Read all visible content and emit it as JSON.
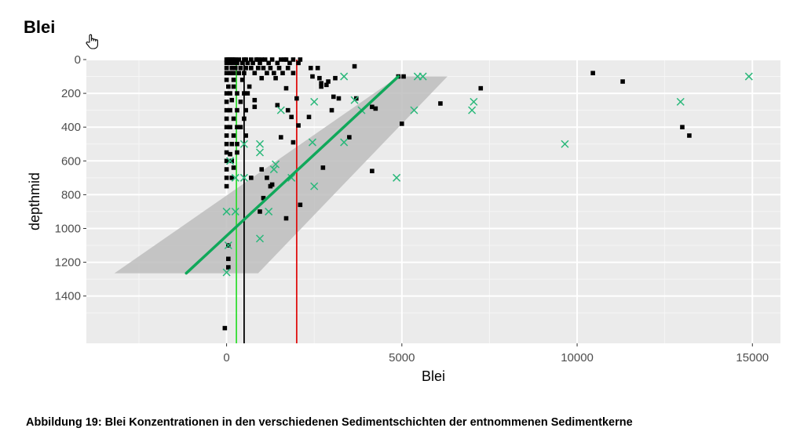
{
  "heading": "Blei",
  "caption": "Abbildung 19: Blei Konzentrationen in den verschiedenen Sedimentschichten der entnommenen Sedimentkerne",
  "cursor_icon": "hand-cursor-icon",
  "chart_data": {
    "type": "scatter",
    "title": "",
    "xlabel": "Blei",
    "ylabel": "depthmid",
    "xlim": [
      -4000,
      15800
    ],
    "ylim": [
      0,
      1680
    ],
    "y_reversed": true,
    "x_ticks": [
      0,
      5000,
      10000,
      15000
    ],
    "x_tick_labels": [
      "0",
      "5000",
      "10000",
      "15000"
    ],
    "y_ticks": [
      0,
      200,
      400,
      600,
      800,
      1000,
      1200,
      1400
    ],
    "y_tick_labels": [
      "0",
      "200",
      "400",
      "600",
      "800",
      "1000",
      "1200",
      "1400"
    ],
    "grid": true,
    "background": "#ebebeb",
    "series": [
      {
        "marker": "square",
        "color": "#000000",
        "points": [
          [
            0,
            0
          ],
          [
            50,
            0
          ],
          [
            100,
            0
          ],
          [
            150,
            0
          ],
          [
            200,
            0
          ],
          [
            250,
            0
          ],
          [
            350,
            0
          ],
          [
            500,
            0
          ],
          [
            550,
            0
          ],
          [
            700,
            0
          ],
          [
            850,
            0
          ],
          [
            900,
            0
          ],
          [
            1000,
            0
          ],
          [
            1100,
            0
          ],
          [
            1300,
            0
          ],
          [
            1550,
            0
          ],
          [
            1650,
            0
          ],
          [
            1700,
            0
          ],
          [
            1900,
            0
          ],
          [
            2100,
            0
          ],
          [
            0,
            20
          ],
          [
            100,
            20
          ],
          [
            200,
            20
          ],
          [
            300,
            20
          ],
          [
            450,
            20
          ],
          [
            600,
            20
          ],
          [
            750,
            20
          ],
          [
            950,
            20
          ],
          [
            1200,
            20
          ],
          [
            1450,
            20
          ],
          [
            1800,
            20
          ],
          [
            2050,
            20
          ],
          [
            0,
            50
          ],
          [
            150,
            50
          ],
          [
            250,
            50
          ],
          [
            400,
            50
          ],
          [
            550,
            50
          ],
          [
            700,
            50
          ],
          [
            900,
            50
          ],
          [
            1050,
            50
          ],
          [
            1250,
            50
          ],
          [
            1500,
            50
          ],
          [
            1750,
            50
          ],
          [
            2400,
            50
          ],
          [
            2600,
            50
          ],
          [
            3650,
            40
          ],
          [
            0,
            80
          ],
          [
            100,
            80
          ],
          [
            200,
            80
          ],
          [
            350,
            80
          ],
          [
            500,
            80
          ],
          [
            800,
            80
          ],
          [
            1150,
            80
          ],
          [
            1350,
            80
          ],
          [
            1600,
            80
          ],
          [
            1900,
            80
          ],
          [
            0,
            120
          ],
          [
            200,
            120
          ],
          [
            450,
            120
          ],
          [
            1000,
            110
          ],
          [
            1400,
            110
          ],
          [
            2450,
            100
          ],
          [
            2650,
            110
          ],
          [
            2700,
            140
          ],
          [
            2900,
            130
          ],
          [
            3100,
            110
          ],
          [
            4900,
            100
          ],
          [
            5050,
            100
          ],
          [
            7250,
            170
          ],
          [
            50,
            160
          ],
          [
            200,
            160
          ],
          [
            650,
            160
          ],
          [
            1700,
            170
          ],
          [
            2700,
            160
          ],
          [
            2850,
            150
          ],
          [
            0,
            200
          ],
          [
            100,
            200
          ],
          [
            300,
            200
          ],
          [
            500,
            200
          ],
          [
            600,
            200
          ],
          [
            3050,
            220
          ],
          [
            3200,
            230
          ],
          [
            3700,
            230
          ],
          [
            4150,
            280
          ],
          [
            4250,
            290
          ],
          [
            6100,
            260
          ],
          [
            0,
            250
          ],
          [
            150,
            240
          ],
          [
            400,
            250
          ],
          [
            800,
            240
          ],
          [
            2000,
            230
          ],
          [
            0,
            300
          ],
          [
            100,
            300
          ],
          [
            300,
            300
          ],
          [
            550,
            300
          ],
          [
            800,
            280
          ],
          [
            1450,
            270
          ],
          [
            1750,
            300
          ],
          [
            3000,
            300
          ],
          [
            0,
            350
          ],
          [
            200,
            350
          ],
          [
            500,
            350
          ],
          [
            1850,
            340
          ],
          [
            2350,
            340
          ],
          [
            5000,
            380
          ],
          [
            0,
            400
          ],
          [
            100,
            400
          ],
          [
            300,
            400
          ],
          [
            400,
            400
          ],
          [
            2050,
            390
          ],
          [
            0,
            450
          ],
          [
            200,
            450
          ],
          [
            550,
            450
          ],
          [
            1550,
            460
          ],
          [
            3500,
            460
          ],
          [
            0,
            500
          ],
          [
            150,
            500
          ],
          [
            300,
            500
          ],
          [
            1900,
            490
          ],
          [
            0,
            550
          ],
          [
            100,
            560
          ],
          [
            300,
            550
          ],
          [
            0,
            600
          ],
          [
            150,
            600
          ],
          [
            0,
            650
          ],
          [
            200,
            640
          ],
          [
            1000,
            650
          ],
          [
            2750,
            640
          ],
          [
            4150,
            660
          ],
          [
            0,
            700
          ],
          [
            150,
            700
          ],
          [
            700,
            700
          ],
          [
            1150,
            700
          ],
          [
            1300,
            740
          ],
          [
            0,
            750
          ],
          [
            1250,
            750
          ],
          [
            2100,
            860
          ],
          [
            1050,
            820
          ],
          [
            950,
            900
          ],
          [
            1700,
            940
          ],
          [
            50,
            1100
          ],
          [
            50,
            1180
          ],
          [
            50,
            1230
          ],
          [
            -50,
            1590
          ],
          [
            10450,
            80
          ],
          [
            11300,
            130
          ],
          [
            13000,
            400
          ],
          [
            13200,
            450
          ]
        ]
      },
      {
        "marker": "cross",
        "color": "#2ab87a",
        "points": [
          [
            3350,
            100
          ],
          [
            5450,
            100
          ],
          [
            5600,
            100
          ],
          [
            14900,
            100
          ],
          [
            3650,
            240
          ],
          [
            2500,
            250
          ],
          [
            7050,
            250
          ],
          [
            12950,
            250
          ],
          [
            1550,
            300
          ],
          [
            3850,
            300
          ],
          [
            5350,
            300
          ],
          [
            7000,
            300
          ],
          [
            2450,
            490
          ],
          [
            3350,
            490
          ],
          [
            950,
            500
          ],
          [
            500,
            500
          ],
          [
            9650,
            500
          ],
          [
            950,
            550
          ],
          [
            1400,
            620
          ],
          [
            1350,
            650
          ],
          [
            100,
            600
          ],
          [
            500,
            700
          ],
          [
            250,
            700
          ],
          [
            1850,
            700
          ],
          [
            4850,
            700
          ],
          [
            2500,
            750
          ],
          [
            0,
            900
          ],
          [
            250,
            900
          ],
          [
            1200,
            900
          ],
          [
            950,
            1060
          ],
          [
            50,
            1100
          ],
          [
            0,
            1260
          ]
        ]
      }
    ],
    "fit_line": {
      "color": "#10a85a",
      "from": [
        -1150,
        1265
      ],
      "to": [
        4900,
        100
      ]
    },
    "confidence_band": {
      "color": "#bdbdbd",
      "polygon": [
        [
          4900,
          100
        ],
        [
          6300,
          100
        ],
        [
          900,
          1265
        ],
        [
          -3200,
          1265
        ]
      ]
    },
    "vertical_lines": [
      {
        "x": 280,
        "color": "#33dd33"
      },
      {
        "x": 500,
        "color": "#000000"
      },
      {
        "x": 2000,
        "color": "#e01010"
      }
    ]
  }
}
